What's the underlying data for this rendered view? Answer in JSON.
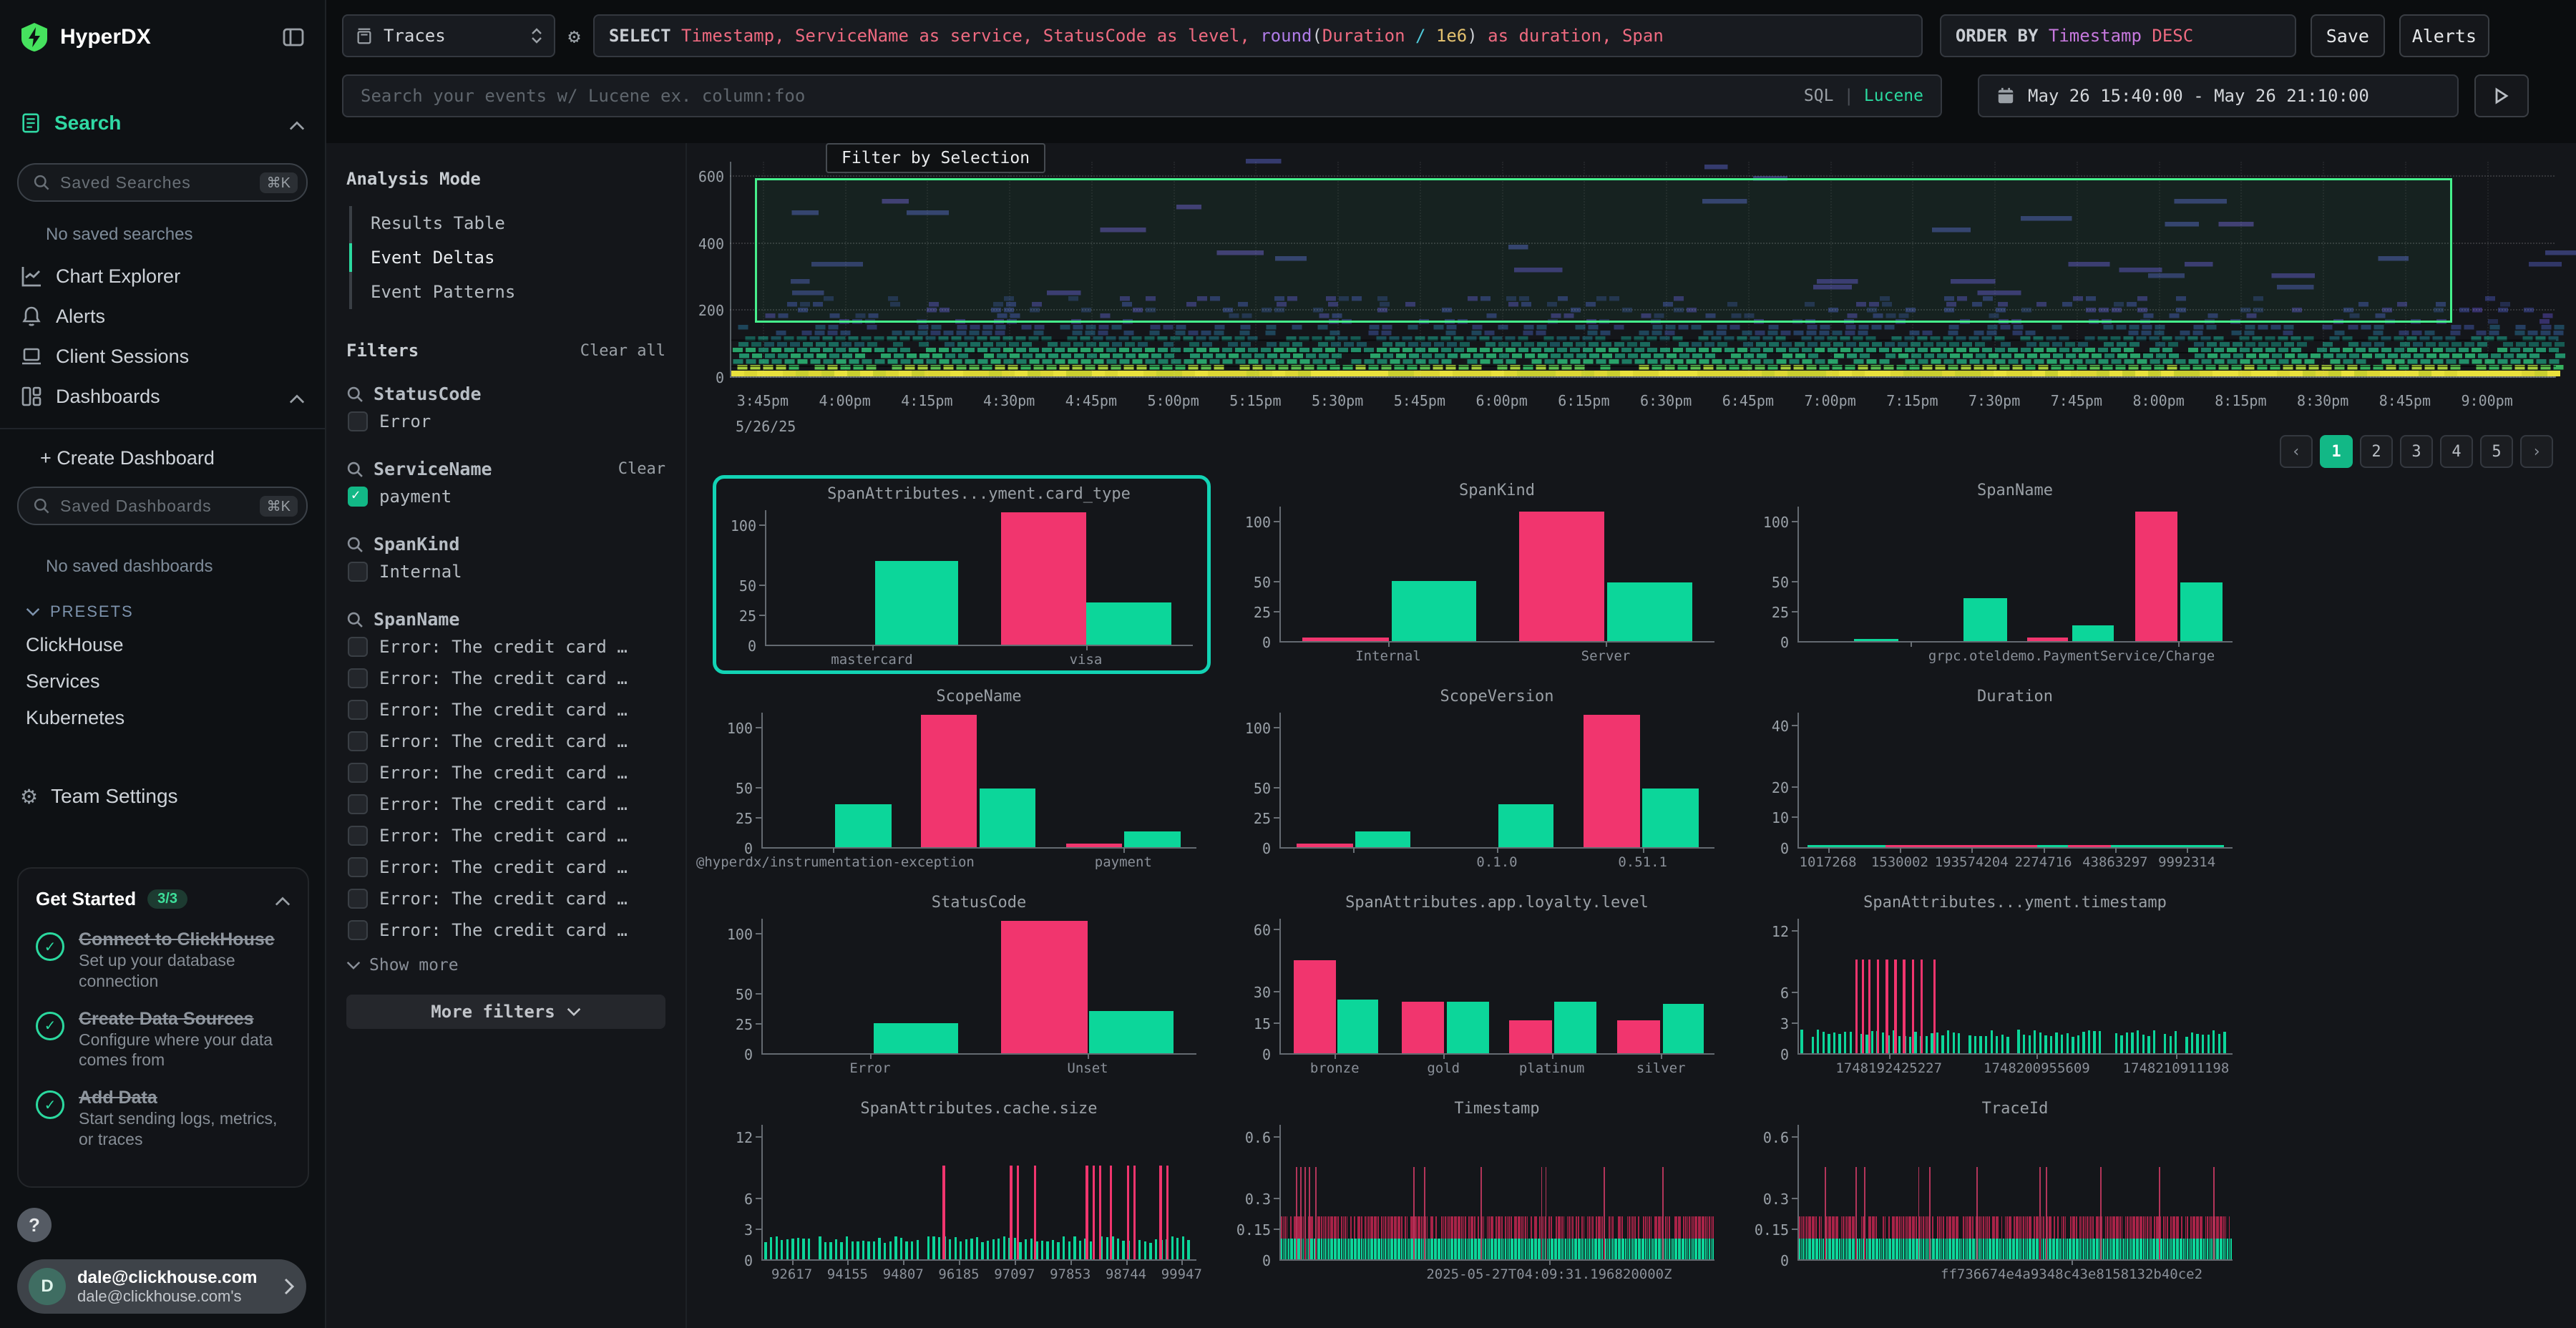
{
  "colors": {
    "accent": "#12b886",
    "accent_text": "#30d9a4",
    "brand_green": "#46e25e",
    "bar_outlier_pink": "#f1356e",
    "bar_inlier_green": "#0cd69a",
    "card_selection_teal": "#12d3b4",
    "heatmap_selection_green": "#46f08c"
  },
  "sidebar": {
    "brand": "HyperDX",
    "search_label": "Search",
    "saved_searches_placeholder": "Saved Searches",
    "saved_searches_kbd": "⌘K",
    "no_saved_searches": "No saved searches",
    "nav": {
      "chart_explorer": "Chart Explorer",
      "alerts": "Alerts",
      "client_sessions": "Client Sessions",
      "dashboards": "Dashboards"
    },
    "create_dashboard": "+ Create Dashboard",
    "saved_dashboards_placeholder": "Saved Dashboards",
    "saved_dashboards_kbd": "⌘K",
    "no_saved_dashboards": "No saved dashboards",
    "presets_label": "PRESETS",
    "presets": [
      "ClickHouse",
      "Services",
      "Kubernetes"
    ],
    "team_settings": "Team Settings",
    "get_started": {
      "title": "Get Started",
      "badge": "3/3",
      "items": [
        {
          "title": "Connect to ClickHouse",
          "desc": "Set up your database connection"
        },
        {
          "title": "Create Data Sources",
          "desc": "Configure where your data comes from"
        },
        {
          "title": "Add Data",
          "desc": "Start sending logs, metrics, or traces"
        }
      ]
    },
    "help_label": "?",
    "user": {
      "initial": "D",
      "email": "dale@clickhouse.com",
      "sub": "dale@clickhouse.com's"
    }
  },
  "topbar": {
    "source_select": "Traces",
    "sql_segments": [
      {
        "text": "SELECT ",
        "color": "keyword"
      },
      {
        "text": "Timestamp",
        "color": "field"
      },
      {
        "text": ", ",
        "color": "field"
      },
      {
        "text": "ServiceName as service",
        "color": "field"
      },
      {
        "text": ", ",
        "color": "field"
      },
      {
        "text": "StatusCode as level",
        "color": "field"
      },
      {
        "text": ", ",
        "color": "field"
      },
      {
        "text": "round",
        "color": "function"
      },
      {
        "text": "(",
        "color": "plain"
      },
      {
        "text": "Duration ",
        "color": "field"
      },
      {
        "text": "/ ",
        "color": "operator"
      },
      {
        "text": "1e6",
        "color": "number"
      },
      {
        "text": ")",
        "color": "plain"
      },
      {
        "text": " as duration",
        "color": "field"
      },
      {
        "text": ", ",
        "color": "field"
      },
      {
        "text": "Span",
        "color": "field"
      }
    ],
    "orderby_segments": [
      {
        "text": "ORDER BY ",
        "color": "keyword"
      },
      {
        "text": "Timestamp ",
        "color": "column"
      },
      {
        "text": "DESC",
        "color": "field"
      }
    ],
    "save_label": "Save",
    "alerts_label": "Alerts",
    "search_placeholder": "Search your events w/ Lucene ex. column:foo",
    "lang_sql": "SQL",
    "lang_divider": "|",
    "lang_lucene": "Lucene",
    "date_range": "May 26 15:40:00 - May 26 21:10:00"
  },
  "filters_panel": {
    "analysis_mode_label": "Analysis Mode",
    "modes": [
      {
        "label": "Results Table",
        "active": false
      },
      {
        "label": "Event Deltas",
        "active": true
      },
      {
        "label": "Event Patterns",
        "active": false
      }
    ],
    "filters_label": "Filters",
    "clear_all": "Clear all",
    "groups": [
      {
        "name": "StatusCode",
        "items": [
          {
            "label": "Error",
            "checked": false
          }
        ]
      },
      {
        "name": "ServiceName",
        "clear": "Clear",
        "items": [
          {
            "label": "payment",
            "checked": true
          }
        ]
      },
      {
        "name": "SpanKind",
        "items": [
          {
            "label": "Internal",
            "checked": false
          }
        ]
      },
      {
        "name": "SpanName",
        "show_more": "Show more",
        "items": [
          {
            "label": "Error: The credit card …",
            "checked": false
          },
          {
            "label": "Error: The credit card …",
            "checked": false
          },
          {
            "label": "Error: The credit card …",
            "checked": false
          },
          {
            "label": "Error: The credit card …",
            "checked": false
          },
          {
            "label": "Error: The credit card …",
            "checked": false
          },
          {
            "label": "Error: The credit card …",
            "checked": false
          },
          {
            "label": "Error: The credit card …",
            "checked": false
          },
          {
            "label": "Error: The credit card …",
            "checked": false
          },
          {
            "label": "Error: The credit card …",
            "checked": false
          },
          {
            "label": "Error: The credit card …",
            "checked": false
          }
        ]
      }
    ],
    "more_filters": "More filters"
  },
  "pagination": {
    "prev": "‹",
    "pages": [
      "1",
      "2",
      "3",
      "4",
      "5"
    ],
    "active_index": 0,
    "next": "›"
  },
  "chart_data": [
    {
      "type": "heatmap",
      "chip": "Filter by Selection",
      "y_ticks": [
        600,
        400,
        200,
        0
      ],
      "y_max": 640,
      "x_ticks": [
        "3:45pm",
        "4:00pm",
        "4:15pm",
        "4:30pm",
        "4:45pm",
        "5:00pm",
        "5:15pm",
        "5:30pm",
        "5:45pm",
        "6:00pm",
        "6:15pm",
        "6:30pm",
        "6:45pm",
        "7:00pm",
        "7:15pm",
        "7:30pm",
        "7:45pm",
        "8:00pm",
        "8:15pm",
        "8:30pm",
        "8:45pm",
        "9:00pm"
      ],
      "date_label": "5/26/25",
      "selection": {
        "value_from": 160,
        "value_to": 591,
        "x_from_pct": 1.3,
        "x_to_pct": 94.3
      },
      "separators": [
        32,
        72,
        110
      ],
      "bands": [
        {
          "to": 14,
          "colors": [
            "#e9e13c",
            "#dcd634",
            "#c9ce2f"
          ],
          "density": 1,
          "solid": true
        },
        {
          "to": 32,
          "colors": [
            "#a6ce3b",
            "#5cbf50",
            "#36b25e"
          ],
          "density": 0.97
        },
        {
          "to": 72,
          "colors": [
            "#28a269",
            "#218f69",
            "#1c7a62"
          ],
          "density": 0.95
        },
        {
          "to": 110,
          "colors": [
            "#19695c",
            "#165a53",
            "#1a4f58"
          ],
          "density": 0.86
        },
        {
          "to": 150,
          "colors": [
            "#1e455a",
            "#253e61",
            "#2a3661"
          ],
          "density": 0.55
        },
        {
          "to": 230,
          "colors": [
            "#2c3364",
            "#36306a",
            "#232c4d"
          ],
          "density": 0.26
        },
        {
          "to": 340,
          "colors": [
            "#313768",
            "#3b3471"
          ],
          "density": 0.1,
          "wide": true
        },
        {
          "to": 520,
          "colors": [
            "#353b6e",
            "#413773"
          ],
          "density": 0.05,
          "wide": true
        },
        {
          "to": 640,
          "colors": [
            "#353b6e"
          ],
          "density": 0.015,
          "wide": true
        }
      ]
    },
    {
      "type": "bar",
      "title": "SpanAttributes...yment.card_type",
      "y_ticks": [
        0,
        25,
        50,
        100
      ],
      "y_max": 112,
      "bars": [
        {
          "x": 25.5,
          "w": 19.5,
          "v": 70,
          "s": "inlier"
        },
        {
          "x": 55,
          "w": 20,
          "v": 110,
          "s": "outlier"
        },
        {
          "x": 75,
          "w": 20,
          "v": 35,
          "s": "inlier"
        }
      ],
      "x_ticks": [
        {
          "x": 25,
          "label": "mastercard"
        },
        {
          "x": 75,
          "label": "visa"
        }
      ]
    },
    {
      "type": "bar",
      "title": "SpanKind",
      "y_ticks": [
        0,
        25,
        50,
        100
      ],
      "y_max": 112,
      "bars": [
        {
          "x": 4.9,
          "w": 20,
          "v": 3,
          "s": "outlier"
        },
        {
          "x": 25.5,
          "w": 19.6,
          "v": 50,
          "s": "inlier"
        },
        {
          "x": 55,
          "w": 19.6,
          "v": 108,
          "s": "outlier"
        },
        {
          "x": 75.3,
          "w": 19.6,
          "v": 49,
          "s": "inlier"
        }
      ],
      "x_ticks": [
        {
          "x": 25,
          "label": "Internal"
        },
        {
          "x": 75,
          "label": "Server"
        }
      ]
    },
    {
      "type": "bar",
      "title": "SpanName",
      "y_ticks": [
        0,
        25,
        50,
        100
      ],
      "y_max": 112,
      "bars": [
        {
          "x": 12.7,
          "w": 10.2,
          "v": 1,
          "s": "inlier"
        },
        {
          "x": 38,
          "w": 10,
          "v": 36,
          "s": "inlier"
        },
        {
          "x": 52.6,
          "w": 9.4,
          "v": 3,
          "s": "outlier"
        },
        {
          "x": 63,
          "w": 9.6,
          "v": 13,
          "s": "inlier"
        },
        {
          "x": 77.5,
          "w": 9.8,
          "v": 108,
          "s": "outlier"
        },
        {
          "x": 88,
          "w": 9.7,
          "v": 49,
          "s": "inlier"
        }
      ],
      "x_ticks": [
        {
          "x": 26,
          "label": ""
        },
        {
          "x": 63,
          "label": "grpc.oteldemo.PaymentService/Charge",
          "tick_x": 87.5
        }
      ]
    },
    {
      "type": "bar",
      "title": "ScopeName",
      "y_ticks": [
        0,
        25,
        50,
        100
      ],
      "y_max": 112,
      "bars": [
        {
          "x": 16.7,
          "w": 13,
          "v": 36,
          "s": "inlier"
        },
        {
          "x": 36.4,
          "w": 13,
          "v": 110,
          "s": "outlier"
        },
        {
          "x": 50,
          "w": 12.9,
          "v": 49,
          "s": "inlier"
        },
        {
          "x": 70,
          "w": 12.8,
          "v": 3,
          "s": "outlier"
        },
        {
          "x": 83.4,
          "w": 12.9,
          "v": 13,
          "s": "inlier"
        }
      ],
      "x_ticks": [
        {
          "x": 17,
          "label": "@hyperdx/instrumentation-exception",
          "tick_x": 16.5
        },
        {
          "x": 83.2,
          "label": "payment"
        }
      ]
    },
    {
      "type": "bar",
      "title": "ScopeVersion",
      "y_ticks": [
        0,
        25,
        50,
        100
      ],
      "y_max": 112,
      "bars": [
        {
          "x": 3.7,
          "w": 13,
          "v": 3,
          "s": "outlier"
        },
        {
          "x": 17.1,
          "w": 12.7,
          "v": 13,
          "s": "inlier"
        },
        {
          "x": 50.2,
          "w": 12.7,
          "v": 36,
          "s": "inlier"
        },
        {
          "x": 69.8,
          "w": 13.1,
          "v": 110,
          "s": "outlier"
        },
        {
          "x": 83.3,
          "w": 13.1,
          "v": 49,
          "s": "inlier"
        }
      ],
      "x_ticks": [
        {
          "x": 17,
          "label": ""
        },
        {
          "x": 50,
          "label": "0.1.0"
        },
        {
          "x": 83.5,
          "label": "0.51.1"
        }
      ]
    },
    {
      "type": "bar",
      "title": "Duration",
      "y_ticks": [
        0,
        10,
        20,
        40
      ],
      "y_max": 44,
      "bars": [
        {
          "x": 2,
          "w": 96,
          "v": 0.5,
          "s": "inlier"
        },
        {
          "x": 20,
          "w": 35,
          "v": 0.6,
          "s": "outlier"
        },
        {
          "x": 62,
          "w": 10,
          "v": 0.6,
          "s": "outlier"
        }
      ],
      "x_ticks": [
        {
          "x": 7,
          "label": "1017268"
        },
        {
          "x": 23.5,
          "label": "1530002"
        },
        {
          "x": 40,
          "label": "193574204"
        },
        {
          "x": 56.5,
          "label": "2274716"
        },
        {
          "x": 73,
          "label": "43863297"
        },
        {
          "x": 89.5,
          "label": "9992314"
        }
      ]
    },
    {
      "type": "bar",
      "title": "StatusCode",
      "y_ticks": [
        0,
        25,
        50,
        100
      ],
      "y_max": 112,
      "bars": [
        {
          "x": 25.5,
          "w": 19.6,
          "v": 25,
          "s": "inlier"
        },
        {
          "x": 55,
          "w": 20,
          "v": 110,
          "s": "outlier"
        },
        {
          "x": 75.2,
          "w": 19.6,
          "v": 35,
          "s": "inlier"
        }
      ],
      "x_ticks": [
        {
          "x": 25,
          "label": "Error"
        },
        {
          "x": 75,
          "label": "Unset"
        }
      ]
    },
    {
      "type": "bar",
      "title": "SpanAttributes.app.loyalty.level",
      "y_ticks": [
        0,
        15,
        30,
        60
      ],
      "y_max": 65,
      "bars": [
        {
          "x": 2.9,
          "w": 9.8,
          "v": 45,
          "s": "outlier"
        },
        {
          "x": 13.1,
          "w": 9.4,
          "v": 26,
          "s": "inlier"
        },
        {
          "x": 27.9,
          "w": 9.8,
          "v": 25,
          "s": "outlier"
        },
        {
          "x": 38.3,
          "w": 9.7,
          "v": 25,
          "s": "inlier"
        },
        {
          "x": 52.7,
          "w": 9.8,
          "v": 16,
          "s": "outlier"
        },
        {
          "x": 63.1,
          "w": 9.6,
          "v": 25,
          "s": "inlier"
        },
        {
          "x": 77.6,
          "w": 9.8,
          "v": 16,
          "s": "outlier"
        },
        {
          "x": 88.1,
          "w": 9.4,
          "v": 24,
          "s": "inlier"
        }
      ],
      "x_ticks": [
        {
          "x": 12.7,
          "label": "bronze"
        },
        {
          "x": 37.7,
          "label": "gold"
        },
        {
          "x": 62.6,
          "label": "platinum"
        },
        {
          "x": 87.7,
          "label": "silver"
        }
      ]
    },
    {
      "type": "spike",
      "title": "SpanAttributes...yment.timestamp",
      "y_ticks": [
        0,
        3,
        6,
        12
      ],
      "y_max": 13.1,
      "base_v": 1.9,
      "step": 1.25,
      "tooth_w": 0.55,
      "spike_v": 9.1,
      "spikes": [
        13,
        14.5,
        16,
        18,
        20,
        22,
        24,
        26,
        28,
        31
      ],
      "x_ticks": [
        {
          "x": 21,
          "label": "1748192425227"
        },
        {
          "x": 55,
          "label": "1748200955609"
        },
        {
          "x": 87,
          "label": "1748210911198"
        }
      ]
    },
    {
      "type": "spike",
      "title": "SpanAttributes.cache.size",
      "y_ticks": [
        0,
        3,
        6,
        12
      ],
      "y_max": 13.1,
      "base_v": 1.9,
      "step": 1.25,
      "tooth_w": 0.55,
      "spike_v": 9.1,
      "spikes": [
        41.5,
        57,
        58.5,
        62.5,
        74.5,
        76,
        77.5,
        80,
        84,
        85.5,
        91.5,
        93
      ],
      "x_ticks": [
        {
          "x": 7,
          "label": "92617"
        },
        {
          "x": 19.8,
          "label": "94155"
        },
        {
          "x": 32.6,
          "label": "94807"
        },
        {
          "x": 45.4,
          "label": "96185"
        },
        {
          "x": 58.2,
          "label": "97097"
        },
        {
          "x": 71,
          "label": "97853"
        },
        {
          "x": 83.8,
          "label": "98744"
        },
        {
          "x": 96.6,
          "label": "99947"
        }
      ]
    },
    {
      "type": "dense",
      "title": "Timestamp",
      "y_ticks": [
        0,
        0.15,
        0.3,
        0.6
      ],
      "y_max": 0.655,
      "green_v": 0.1,
      "red_v": 0.21,
      "red_density": 0.78,
      "spike_v": 0.45,
      "spikes": [
        3.5,
        4.5,
        5.5,
        6.5,
        8,
        30.5,
        33,
        46,
        60,
        61,
        74.5,
        88
      ],
      "x_ticks": [
        {
          "x": 62,
          "label": "2025-05-27T04:09:31.196820000Z"
        }
      ]
    },
    {
      "type": "dense",
      "title": "TraceId",
      "y_ticks": [
        0,
        0.15,
        0.3,
        0.6
      ],
      "y_max": 0.655,
      "green_v": 0.1,
      "red_v": 0.21,
      "red_density": 0.78,
      "spike_v": 0.45,
      "spikes": [
        6,
        13,
        15,
        27.5,
        30,
        41,
        55.5,
        57,
        69.5,
        83,
        95.5
      ],
      "x_ticks": [
        {
          "x": 63,
          "label": "ff736674e4a9348c43e8158132b40ce2"
        }
      ]
    }
  ]
}
